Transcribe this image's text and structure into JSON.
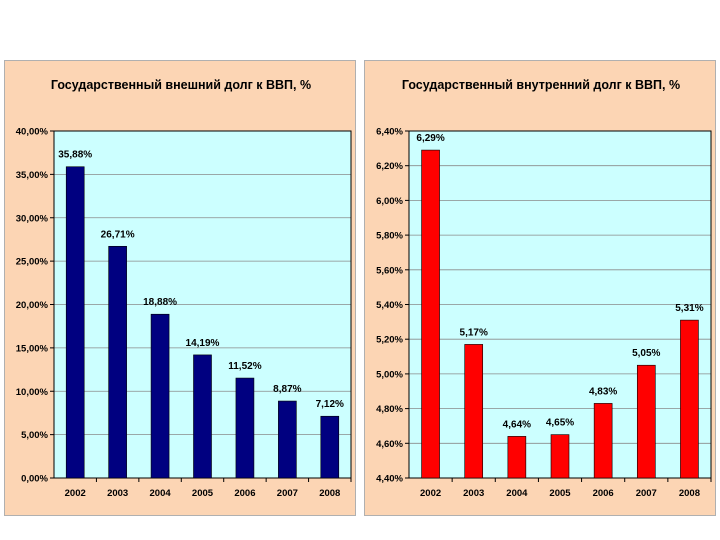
{
  "chart_data": [
    {
      "type": "bar",
      "title": "Государственный внешний долг  к  ВВП, %",
      "categories": [
        "2002",
        "2003",
        "2004",
        "2005",
        "2006",
        "2007",
        "2008"
      ],
      "values": [
        35.88,
        26.71,
        18.88,
        14.19,
        11.52,
        8.87,
        7.12
      ],
      "value_labels": [
        "35,88%",
        "26,71%",
        "18,88%",
        "14,19%",
        "11,52%",
        "8,87%",
        "7,12%"
      ],
      "ylim": [
        0,
        40
      ],
      "yticks": [
        0,
        5,
        10,
        15,
        20,
        25,
        30,
        35,
        40
      ],
      "ytick_labels": [
        "0,00%",
        "5,00%",
        "10,00%",
        "15,00%",
        "20,00%",
        "25,00%",
        "30,00%",
        "35,00%",
        "40,00%"
      ],
      "xlabel": "",
      "ylabel": "",
      "grid": true,
      "bar_color": "#000080",
      "plot_bg": "#ccffff"
    },
    {
      "type": "bar",
      "title": "Государственный внутренний долг к ВВП, %",
      "categories": [
        "2002",
        "2003",
        "2004",
        "2005",
        "2006",
        "2007",
        "2008"
      ],
      "values": [
        6.29,
        5.17,
        4.64,
        4.65,
        4.83,
        5.05,
        5.31
      ],
      "value_labels": [
        "6,29%",
        "5,17%",
        "4,64%",
        "4,65%",
        "4,83%",
        "5,05%",
        "5,31%"
      ],
      "ylim": [
        4.4,
        6.4
      ],
      "yticks": [
        4.4,
        4.6,
        4.8,
        5.0,
        5.2,
        5.4,
        5.6,
        5.8,
        6.0,
        6.2,
        6.4
      ],
      "ytick_labels": [
        "4,40%",
        "4,60%",
        "4,80%",
        "5,00%",
        "5,20%",
        "5,40%",
        "5,60%",
        "5,80%",
        "6,00%",
        "6,20%",
        "6,40%"
      ],
      "xlabel": "",
      "ylabel": "",
      "grid": true,
      "bar_color": "#ff0000",
      "plot_bg": "#ccffff"
    }
  ]
}
